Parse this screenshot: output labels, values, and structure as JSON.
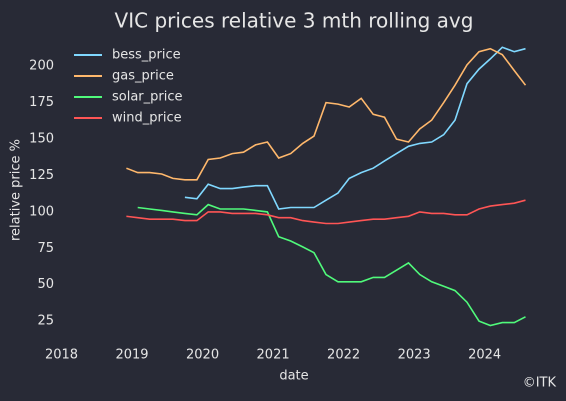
{
  "chart_data": {
    "type": "line",
    "title": "VIC prices relative 3 mth rolling avg",
    "xlabel": "date",
    "ylabel": "relative price %",
    "credit": "©ITK",
    "legend": "upper left",
    "x": [
      2018.92,
      2019.08,
      2019.25,
      2019.42,
      2019.58,
      2019.75,
      2019.92,
      2020.08,
      2020.25,
      2020.42,
      2020.58,
      2020.75,
      2020.92,
      2021.08,
      2021.25,
      2021.42,
      2021.58,
      2021.75,
      2021.92,
      2022.08,
      2022.25,
      2022.42,
      2022.58,
      2022.75,
      2022.92,
      2023.08,
      2023.25,
      2023.42,
      2023.58,
      2023.75,
      2023.92,
      2024.08,
      2024.25,
      2024.42,
      2024.58
    ],
    "series": [
      {
        "name": "bess_price",
        "color": "#80d8ff",
        "values": [
          null,
          null,
          null,
          null,
          null,
          110,
          109,
          119,
          116,
          116,
          117,
          118,
          118,
          102,
          103,
          103,
          103,
          108,
          113,
          123,
          127,
          130,
          135,
          140,
          145,
          147,
          148,
          153,
          163,
          188,
          198,
          205,
          213,
          210,
          212
        ]
      },
      {
        "name": "gas_price",
        "color": "#ffb86c",
        "values": [
          130,
          127,
          127,
          126,
          123,
          122,
          122,
          136,
          137,
          140,
          141,
          146,
          148,
          137,
          140,
          147,
          152,
          175,
          174,
          172,
          178,
          167,
          165,
          150,
          148,
          157,
          163,
          175,
          187,
          201,
          210,
          212,
          208,
          197,
          187
        ]
      },
      {
        "name": "solar_price",
        "color": "#50fa7b",
        "values": [
          null,
          103,
          102,
          101,
          100,
          99,
          98,
          105,
          102,
          102,
          102,
          101,
          100,
          83,
          80,
          76,
          72,
          57,
          52,
          52,
          52,
          55,
          55,
          60,
          65,
          57,
          52,
          49,
          46,
          38,
          25,
          22,
          24,
          24,
          28
        ]
      },
      {
        "name": "wind_price",
        "color": "#ff5555",
        "values": [
          97,
          96,
          95,
          95,
          95,
          94,
          94,
          100,
          100,
          99,
          99,
          99,
          98,
          96,
          96,
          94,
          93,
          92,
          92,
          93,
          94,
          95,
          95,
          96,
          97,
          100,
          99,
          99,
          98,
          98,
          102,
          104,
          105,
          106,
          108
        ]
      }
    ],
    "xlim": [
      2017.95,
      2024.7
    ],
    "xticks": [
      2018,
      2019,
      2020,
      2021,
      2022,
      2023,
      2024
    ],
    "ylim": [
      10,
      218
    ],
    "yticks": [
      25,
      50,
      75,
      100,
      125,
      150,
      175,
      200
    ],
    "grid": false
  }
}
